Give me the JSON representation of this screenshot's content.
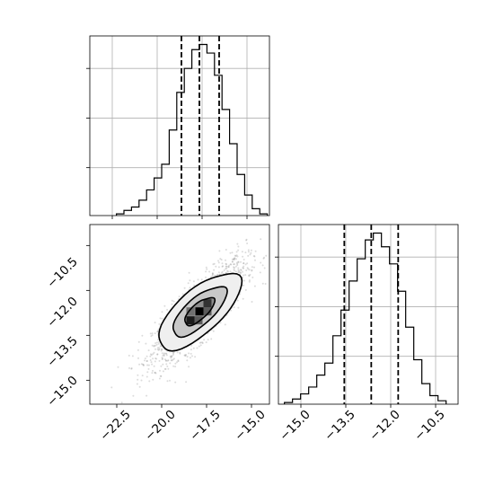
{
  "chart_data": {
    "type": "corner",
    "parameters": [
      {
        "title": "",
        "label": "",
        "quantiles": [
          -18.9,
          -17.9,
          -16.8
        ]
      },
      {
        "title": "",
        "label": "",
        "quantiles": [
          -13.6,
          -12.7,
          -11.8
        ]
      }
    ],
    "panels": [
      {
        "type": "histogram",
        "parameter_index": 0,
        "xlim": [
          -24.0,
          -14.0
        ],
        "grid": true,
        "bins": {
          "edges": [
            -22.52,
            -22.1,
            -21.68,
            -21.26,
            -20.84,
            -20.42,
            -20.0,
            -19.58,
            -19.16,
            -18.74,
            -18.32,
            -17.9,
            -17.48,
            -17.06,
            -16.64,
            -16.22,
            -15.8,
            -15.38,
            -14.96,
            -14.54,
            -14.12
          ],
          "heights": [
            0.01,
            0.03,
            0.05,
            0.09,
            0.15,
            0.22,
            0.3,
            0.5,
            0.72,
            0.86,
            0.97,
            1.0,
            0.95,
            0.82,
            0.62,
            0.42,
            0.24,
            0.12,
            0.04,
            0.01
          ]
        }
      },
      {
        "type": "histogram",
        "parameter_index": 1,
        "xlim": [
          -15.8,
          -9.8
        ],
        "grid": true,
        "xticks": [
          "−15.0",
          "−13.5",
          "−12.0",
          "−10.5"
        ],
        "bins": {
          "edges": [
            -15.6,
            -15.33,
            -15.06,
            -14.79,
            -14.52,
            -14.25,
            -13.98,
            -13.71,
            -13.44,
            -13.17,
            -12.9,
            -12.63,
            -12.36,
            -12.09,
            -11.82,
            -11.55,
            -11.28,
            -11.01,
            -10.74,
            -10.47,
            -10.2
          ],
          "heights": [
            0.01,
            0.03,
            0.06,
            0.1,
            0.17,
            0.24,
            0.4,
            0.55,
            0.72,
            0.85,
            0.96,
            1.0,
            0.92,
            0.82,
            0.66,
            0.45,
            0.26,
            0.12,
            0.05,
            0.02
          ]
        }
      },
      {
        "type": "scatter-density",
        "x_parameter": 0,
        "y_parameter": 1,
        "xlim": [
          -24.0,
          -14.0
        ],
        "ylim": [
          -15.8,
          -9.8
        ],
        "xticks": [
          "−22.5",
          "−20.0",
          "−17.5",
          "−15.0"
        ],
        "yticks": [
          "−10.5",
          "−12.0",
          "−13.5",
          "−15.0"
        ],
        "points": {
          "count": 1800,
          "mean": [
            -17.9,
            -12.7
          ],
          "std": [
            1.3,
            0.85
          ],
          "correlation": 0.82
        },
        "density_levels": [
          "outer-contour",
          "middle-contour",
          "inner-contour",
          "peak-bins"
        ]
      }
    ]
  }
}
